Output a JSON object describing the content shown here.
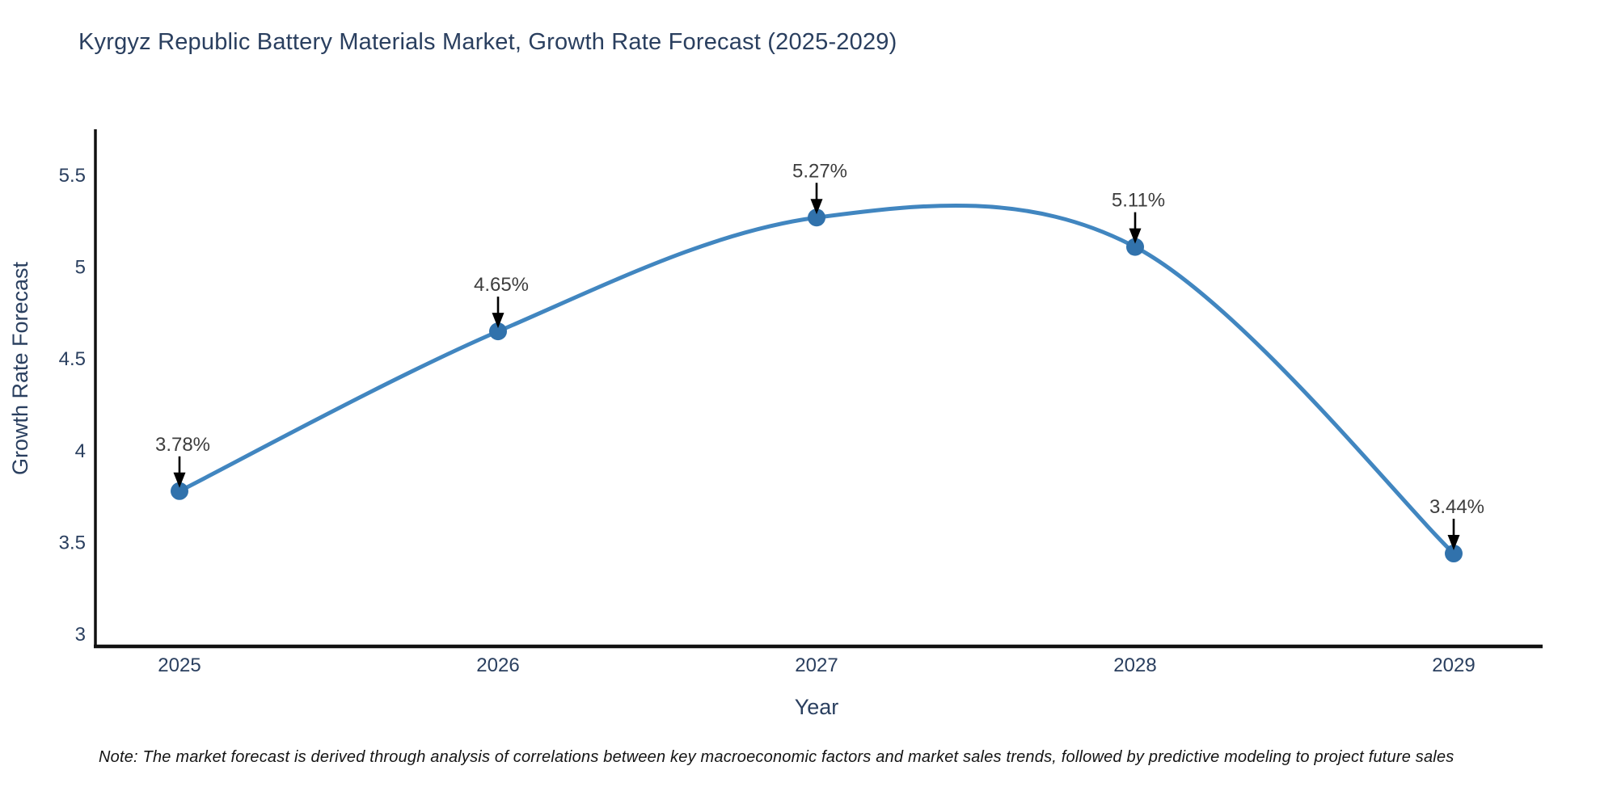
{
  "title": "Kyrgyz Republic Battery Materials Market, Growth Rate Forecast (2025-2029)",
  "note": "Note: The market forecast is derived through analysis of correlations between key macroeconomic factors and market sales trends, followed by predictive modeling to project future sales",
  "chart_data": {
    "type": "line",
    "line_shape": "spline",
    "x": [
      2025,
      2026,
      2027,
      2028,
      2029
    ],
    "values": [
      3.78,
      4.65,
      5.27,
      5.11,
      3.44
    ],
    "point_labels": [
      "3.78%",
      "4.65%",
      "5.27%",
      "5.11%",
      "3.44%"
    ],
    "title": "Kyrgyz Republic Battery Materials Market, Growth Rate Forecast (2025-2029)",
    "xlabel": "Year",
    "ylabel": "Growth Rate Forecast",
    "yticks": [
      "3",
      "3.5",
      "4",
      "4.5",
      "5",
      "5.5"
    ],
    "ytick_values": [
      3,
      3.5,
      4,
      4.5,
      5,
      5.5
    ],
    "ylim": [
      3,
      5.9
    ],
    "grid": false,
    "legend": "none",
    "markers": true,
    "annotations_have_arrows": true,
    "colors": {
      "line": "#4186c0",
      "marker": "#3172ac",
      "axis_spine": "#111111",
      "tick_text": "#2a3f5f",
      "annotation_text": "#3d3d3d",
      "arrow": "#000000",
      "background": "#ffffff"
    }
  }
}
